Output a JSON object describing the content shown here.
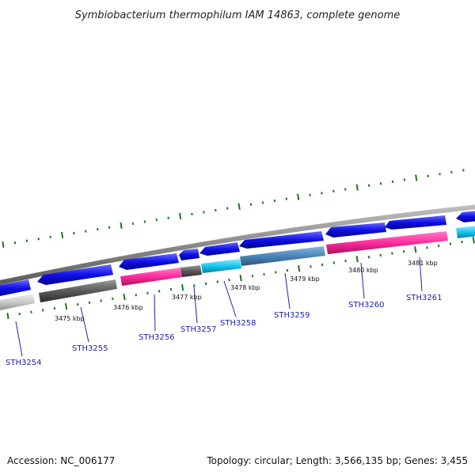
{
  "header": {
    "title": "Symbiobacterium thermophilum IAM 14863, complete genome"
  },
  "footer": {
    "accession": "Accession: NC_006177",
    "topology": "Topology: circular; Length: 3,566,135 bp; Genes: 3,455"
  },
  "colors": {
    "backbone": "#8a8a8a",
    "forward_gene": "#1010e8",
    "tick": "#1a7a1a",
    "gene_label": "#2222aa",
    "pink": "#ff2c9c",
    "cyan": "#18c8f0",
    "steelblue": "#4a86b8",
    "dark_gray": "#5a5a5a",
    "light_gray": "#c8c8c8"
  },
  "kbp_labels": [
    {
      "text": "3475 kbp"
    },
    {
      "text": "3476 kbp"
    },
    {
      "text": "3477 kbp"
    },
    {
      "text": "3478 kbp"
    },
    {
      "text": "3479 kbp"
    },
    {
      "text": "3480 kbp"
    },
    {
      "text": "3481 kbp"
    }
  ],
  "gene_labels": [
    {
      "text": "STH3254"
    },
    {
      "text": "STH3255"
    },
    {
      "text": "STH3256"
    },
    {
      "text": "STH3257"
    },
    {
      "text": "STH3258"
    },
    {
      "text": "STH3259"
    },
    {
      "text": "STH3260"
    },
    {
      "text": "STH3261"
    }
  ]
}
